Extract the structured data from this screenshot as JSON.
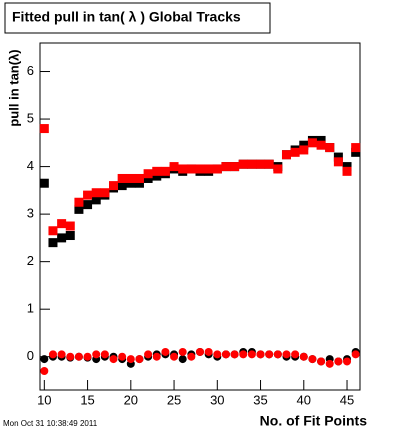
{
  "chart_data": {
    "type": "scatter",
    "title": "Fitted pull in tan( λ )  Global Tracks",
    "x_label": "No. of Fit Points",
    "y_label": "pull in tan(λ)",
    "timestamp": "Mon Oct 31 10:38:49 2011",
    "x": [
      10,
      11,
      12,
      13,
      14,
      15,
      16,
      17,
      18,
      19,
      20,
      21,
      22,
      23,
      24,
      25,
      26,
      27,
      28,
      29,
      30,
      31,
      32,
      33,
      34,
      35,
      36,
      37,
      38,
      39,
      40,
      41,
      42,
      43,
      44,
      45,
      46
    ],
    "series": [
      {
        "color": "#000000",
        "marker": "square",
        "values": [
          3.65,
          2.4,
          2.5,
          2.55,
          3.1,
          3.2,
          3.3,
          3.4,
          3.55,
          3.6,
          3.65,
          3.65,
          3.75,
          3.8,
          3.85,
          3.95,
          3.9,
          3.95,
          3.9,
          3.9,
          3.95,
          4.0,
          4.0,
          4.05,
          4.05,
          4.05,
          4.05,
          4.0,
          4.25,
          4.35,
          4.45,
          4.55,
          4.55,
          4.4,
          4.2,
          4.0,
          4.3
        ]
      },
      {
        "color": "#ff0000",
        "marker": "square",
        "values": [
          4.8,
          2.65,
          2.8,
          2.75,
          3.25,
          3.4,
          3.45,
          3.45,
          3.6,
          3.75,
          3.75,
          3.75,
          3.85,
          3.9,
          3.9,
          4.0,
          3.95,
          3.95,
          3.95,
          3.95,
          3.95,
          4.0,
          4.0,
          4.05,
          4.05,
          4.05,
          4.05,
          3.95,
          4.25,
          4.3,
          4.35,
          4.5,
          4.45,
          4.4,
          4.1,
          3.9,
          4.4
        ]
      },
      {
        "color": "#000000",
        "marker": "circle",
        "values": [
          -0.05,
          0.0,
          0.0,
          -0.02,
          0.0,
          -0.02,
          -0.05,
          0.0,
          0.0,
          -0.05,
          -0.15,
          -0.05,
          0.0,
          0.05,
          0.05,
          0.05,
          -0.05,
          0.05,
          0.1,
          0.05,
          0.0,
          0.05,
          0.05,
          0.1,
          0.1,
          0.05,
          0.05,
          0.05,
          0.0,
          0.0,
          0.0,
          -0.05,
          -0.1,
          -0.05,
          -0.1,
          -0.05,
          0.1
        ]
      },
      {
        "color": "#ff0000",
        "marker": "circle",
        "values": [
          -0.3,
          0.05,
          0.05,
          0.0,
          0.0,
          0.0,
          0.05,
          0.05,
          -0.05,
          0.0,
          -0.05,
          -0.05,
          0.05,
          0.0,
          0.1,
          0.0,
          0.1,
          0.0,
          0.1,
          0.1,
          0.05,
          0.05,
          0.05,
          0.05,
          0.05,
          0.05,
          0.05,
          0.05,
          0.05,
          0.05,
          0.0,
          -0.05,
          -0.1,
          -0.15,
          -0.1,
          -0.1,
          0.05
        ]
      }
    ],
    "xlim": [
      9.5,
      46.5
    ],
    "xticks": [
      10,
      15,
      20,
      25,
      30,
      35,
      40,
      45
    ],
    "ylim": [
      -0.7,
      6.6
    ],
    "yticks": [
      0,
      1,
      2,
      3,
      4,
      5,
      6
    ],
    "grid": false
  }
}
